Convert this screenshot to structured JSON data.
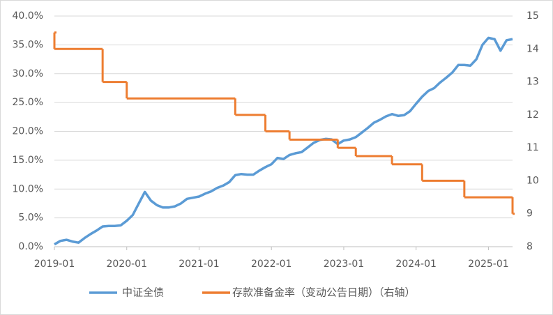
{
  "chart_data": {
    "type": "line",
    "xlim": [
      "2019-01",
      "2025-05"
    ],
    "xticks": [
      "2019-01",
      "2020-01",
      "2021-01",
      "2022-01",
      "2023-01",
      "2024-01",
      "2025-01"
    ],
    "ylim": [
      0,
      40
    ],
    "yticks": [
      {
        "value": 0,
        "label": "0.0%"
      },
      {
        "value": 5,
        "label": "5.0%"
      },
      {
        "value": 10,
        "label": "10.0%"
      },
      {
        "value": 15,
        "label": "15.0%"
      },
      {
        "value": 20,
        "label": "20.0%"
      },
      {
        "value": 25,
        "label": "25.0%"
      },
      {
        "value": 30,
        "label": "30.0%"
      },
      {
        "value": 35,
        "label": "35.0%"
      },
      {
        "value": 40,
        "label": "40.0%"
      }
    ],
    "y2lim": [
      8,
      15
    ],
    "y2ticks": [
      8,
      9,
      10,
      11,
      12,
      13,
      14,
      15
    ],
    "grid": true,
    "legend": "bottom",
    "series": [
      {
        "name": "中证全债",
        "color": "#5b9bd5",
        "x": [
          "2019-01",
          "2019-02",
          "2019-03",
          "2019-04",
          "2019-05",
          "2019-06",
          "2019-07",
          "2019-08",
          "2019-09",
          "2019-10",
          "2019-11",
          "2019-12",
          "2020-01",
          "2020-02",
          "2020-03",
          "2020-04",
          "2020-05",
          "2020-06",
          "2020-07",
          "2020-08",
          "2020-09",
          "2020-10",
          "2020-11",
          "2020-12",
          "2021-01",
          "2021-02",
          "2021-03",
          "2021-04",
          "2021-05",
          "2021-06",
          "2021-07",
          "2021-08",
          "2021-09",
          "2021-10",
          "2021-11",
          "2021-12",
          "2022-01",
          "2022-02",
          "2022-03",
          "2022-04",
          "2022-05",
          "2022-06",
          "2022-07",
          "2022-08",
          "2022-09",
          "2022-10",
          "2022-11",
          "2022-12",
          "2023-01",
          "2023-02",
          "2023-03",
          "2023-04",
          "2023-05",
          "2023-06",
          "2023-07",
          "2023-08",
          "2023-09",
          "2023-10",
          "2023-11",
          "2023-12",
          "2024-01",
          "2024-02",
          "2024-03",
          "2024-04",
          "2024-05",
          "2024-06",
          "2024-07",
          "2024-08",
          "2024-09",
          "2024-10",
          "2024-11",
          "2024-12",
          "2025-01",
          "2025-02",
          "2025-03",
          "2025-04",
          "2025-05"
        ],
        "values": [
          0.4,
          1.0,
          1.2,
          0.9,
          0.7,
          1.5,
          2.2,
          2.8,
          3.5,
          3.6,
          3.6,
          3.7,
          4.5,
          5.5,
          7.5,
          9.5,
          8.0,
          7.2,
          6.8,
          6.8,
          7.0,
          7.5,
          8.3,
          8.5,
          8.7,
          9.2,
          9.6,
          10.2,
          10.6,
          11.2,
          12.4,
          12.6,
          12.5,
          12.5,
          13.2,
          13.8,
          14.3,
          15.4,
          15.2,
          15.9,
          16.2,
          16.4,
          17.2,
          18.0,
          18.5,
          18.7,
          18.6,
          17.8,
          18.4,
          18.6,
          19.0,
          19.8,
          20.6,
          21.5,
          22.0,
          22.6,
          23.0,
          22.7,
          22.8,
          23.5,
          24.8,
          26.0,
          27.0,
          27.5,
          28.5,
          29.3,
          30.2,
          31.5,
          31.5,
          31.4,
          32.5,
          35.0,
          36.2,
          36.0,
          34.0,
          35.8,
          36.0
        ]
      },
      {
        "name": "存款准备金率（变动公告日期）（右轴）",
        "color": "#ed7d31",
        "axis": "y2",
        "step": true,
        "x": [
          "2019-01",
          "2019-01",
          "2019-09",
          "2020-01",
          "2021-07",
          "2021-12",
          "2022-04",
          "2022-12",
          "2023-03",
          "2023-09",
          "2024-02",
          "2024-09",
          "2025-05"
        ],
        "values": [
          14.5,
          14.0,
          13.0,
          12.5,
          12.0,
          11.5,
          11.25,
          11.0,
          10.75,
          10.5,
          10.0,
          9.5,
          9.0
        ]
      }
    ]
  }
}
